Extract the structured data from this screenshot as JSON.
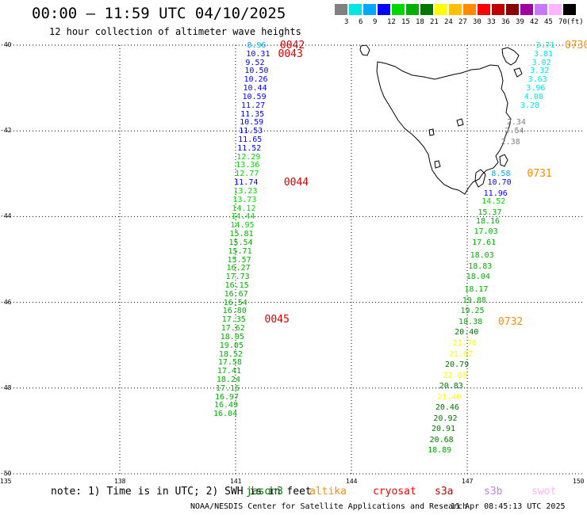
{
  "header": {
    "title": "00:00 – 11:59 UTC 04/10/2025",
    "subtitle": "12 hour collection of altimeter wave heights"
  },
  "legend": {
    "unit": "(ft)",
    "items": [
      {
        "label": "3",
        "color": "#808080"
      },
      {
        "label": "6",
        "color": "#00e5e5"
      },
      {
        "label": "9",
        "color": "#00a8ff"
      },
      {
        "label": "12",
        "color": "#0000ff"
      },
      {
        "label": "15",
        "color": "#00d800"
      },
      {
        "label": "18",
        "color": "#00b000"
      },
      {
        "label": "21",
        "color": "#007800"
      },
      {
        "label": "24",
        "color": "#ffff00"
      },
      {
        "label": "27",
        "color": "#ffc000"
      },
      {
        "label": "30",
        "color": "#ff8c00"
      },
      {
        "label": "33",
        "color": "#ff0000"
      },
      {
        "label": "36",
        "color": "#c00000"
      },
      {
        "label": "39",
        "color": "#880000"
      },
      {
        "label": "42",
        "color": "#a000a0"
      },
      {
        "label": "45",
        "color": "#c878ff"
      },
      {
        "label": "70",
        "color": "#ffb4ff"
      },
      {
        "label": "",
        "color": "#000000"
      }
    ]
  },
  "axes": {
    "lon": {
      "min": 135,
      "max": 150,
      "ticks": [
        "135",
        "138",
        "141",
        "144",
        "147",
        "150"
      ]
    },
    "lat": {
      "min": -50,
      "max": -40,
      "ticks": [
        "-40",
        "-42",
        "-44",
        "-46",
        "-48",
        "-50"
      ]
    }
  },
  "tracks": [
    {
      "id": "west",
      "points": [
        {
          "v": "8.96",
          "lat": -40.0,
          "lon": 141.87,
          "color": "#00a8ff"
        },
        {
          "v": "10.31",
          "lat": -40.2,
          "lon": 141.85,
          "color": "#0000ff"
        },
        {
          "v": "9.52",
          "lat": -40.4,
          "lon": 141.83,
          "color": "#0000ff"
        },
        {
          "v": "10.50",
          "lat": -40.6,
          "lon": 141.81,
          "color": "#0000ff"
        },
        {
          "v": "10.26",
          "lat": -40.8,
          "lon": 141.79,
          "color": "#0000ff"
        },
        {
          "v": "10.44",
          "lat": -41.0,
          "lon": 141.77,
          "color": "#0000ff"
        },
        {
          "v": "10.59",
          "lat": -41.2,
          "lon": 141.75,
          "color": "#0000ff"
        },
        {
          "v": "11.27",
          "lat": -41.4,
          "lon": 141.72,
          "color": "#0000ff"
        },
        {
          "v": "11.35",
          "lat": -41.6,
          "lon": 141.7,
          "color": "#0000ff"
        },
        {
          "v": "10.59",
          "lat": -41.8,
          "lon": 141.68,
          "color": "#0000ff"
        },
        {
          "v": "11.53",
          "lat": -42.0,
          "lon": 141.66,
          "color": "#0000ff"
        },
        {
          "v": "11.65",
          "lat": -42.2,
          "lon": 141.64,
          "color": "#0000ff"
        },
        {
          "v": "11.52",
          "lat": -42.4,
          "lon": 141.62,
          "color": "#0000ff"
        },
        {
          "v": "12.29",
          "lat": -42.6,
          "lon": 141.6,
          "color": "#00d800"
        },
        {
          "v": "13.36",
          "lat": -42.8,
          "lon": 141.58,
          "color": "#00d800"
        },
        {
          "v": "12.77",
          "lat": -43.0,
          "lon": 141.56,
          "color": "#00d800"
        },
        {
          "v": "11.74",
          "lat": -43.2,
          "lon": 141.54,
          "color": "#0000ff"
        },
        {
          "v": "13.23",
          "lat": -43.4,
          "lon": 141.52,
          "color": "#00d800"
        },
        {
          "v": "13.73",
          "lat": -43.6,
          "lon": 141.5,
          "color": "#00d800"
        },
        {
          "v": "14.12",
          "lat": -43.8,
          "lon": 141.48,
          "color": "#00d800"
        },
        {
          "v": "14.44",
          "lat": -44.0,
          "lon": 141.46,
          "color": "#00d800"
        },
        {
          "v": "14.95",
          "lat": -44.2,
          "lon": 141.44,
          "color": "#00d800"
        },
        {
          "v": "15.81",
          "lat": -44.4,
          "lon": 141.42,
          "color": "#00b000"
        },
        {
          "v": "15.54",
          "lat": -44.6,
          "lon": 141.4,
          "color": "#00b000"
        },
        {
          "v": "15.71",
          "lat": -44.8,
          "lon": 141.38,
          "color": "#00b000"
        },
        {
          "v": "15.57",
          "lat": -45.0,
          "lon": 141.36,
          "color": "#00b000"
        },
        {
          "v": "16.27",
          "lat": -45.2,
          "lon": 141.34,
          "color": "#00b000"
        },
        {
          "v": "17.73",
          "lat": -45.4,
          "lon": 141.32,
          "color": "#00b000"
        },
        {
          "v": "16.15",
          "lat": -45.6,
          "lon": 141.3,
          "color": "#00b000"
        },
        {
          "v": "16.67",
          "lat": -45.8,
          "lon": 141.28,
          "color": "#00b000"
        },
        {
          "v": "16.54",
          "lat": -46.0,
          "lon": 141.26,
          "color": "#00b000"
        },
        {
          "v": "16.80",
          "lat": -46.2,
          "lon": 141.24,
          "color": "#00b000"
        },
        {
          "v": "17.35",
          "lat": -46.4,
          "lon": 141.22,
          "color": "#00b000"
        },
        {
          "v": "17.62",
          "lat": -46.6,
          "lon": 141.2,
          "color": "#00b000"
        },
        {
          "v": "18.05",
          "lat": -46.8,
          "lon": 141.18,
          "color": "#00b000"
        },
        {
          "v": "19.05",
          "lat": -47.0,
          "lon": 141.16,
          "color": "#00b000"
        },
        {
          "v": "18.52",
          "lat": -47.2,
          "lon": 141.14,
          "color": "#00b000"
        },
        {
          "v": "17.58",
          "lat": -47.4,
          "lon": 141.12,
          "color": "#00b000"
        },
        {
          "v": "17.41",
          "lat": -47.6,
          "lon": 141.1,
          "color": "#00b000"
        },
        {
          "v": "18.24",
          "lat": -47.8,
          "lon": 141.08,
          "color": "#00b000"
        },
        {
          "v": "17.16",
          "lat": -48.0,
          "lon": 141.06,
          "color": "#00b000"
        },
        {
          "v": "16.97",
          "lat": -48.2,
          "lon": 141.04,
          "color": "#00b000"
        },
        {
          "v": "16.49",
          "lat": -48.4,
          "lon": 141.02,
          "color": "#00b000"
        },
        {
          "v": "16.04",
          "lat": -48.6,
          "lon": 141.0,
          "color": "#00b000"
        }
      ]
    },
    {
      "id": "east-upper",
      "points": [
        {
          "v": "3.71",
          "lat": -40.0,
          "lon": 149.35,
          "color": "#00e5e5"
        },
        {
          "v": "3.81",
          "lat": -40.2,
          "lon": 149.3,
          "color": "#00e5e5"
        },
        {
          "v": "3.02",
          "lat": -40.4,
          "lon": 149.25,
          "color": "#00e5e5"
        },
        {
          "v": "3.32",
          "lat": -40.6,
          "lon": 149.2,
          "color": "#00e5e5"
        },
        {
          "v": "3.63",
          "lat": -40.8,
          "lon": 149.15,
          "color": "#00e5e5"
        },
        {
          "v": "3.96",
          "lat": -41.0,
          "lon": 149.1,
          "color": "#00e5e5"
        },
        {
          "v": "4.00",
          "lat": -41.2,
          "lon": 149.05,
          "color": "#00e5e5"
        },
        {
          "v": "3.28",
          "lat": -41.4,
          "lon": 148.95,
          "color": "#00e5e5"
        },
        {
          "v": "2.34",
          "lat": -41.8,
          "lon": 148.6,
          "color": "#808080"
        },
        {
          "v": "2.54",
          "lat": -42.0,
          "lon": 148.55,
          "color": "#808080"
        },
        {
          "v": "2.38",
          "lat": -42.25,
          "lon": 148.45,
          "color": "#808080"
        }
      ]
    },
    {
      "id": "east",
      "points": [
        {
          "v": "8.58",
          "lat": -43.0,
          "lon": 148.2,
          "color": "#00a8ff"
        },
        {
          "v": "10.70",
          "lat": -43.2,
          "lon": 148.1,
          "color": "#0000ff"
        },
        {
          "v": "11.96",
          "lat": -43.45,
          "lon": 148.0,
          "color": "#0000ff"
        },
        {
          "v": "14.52",
          "lat": -43.65,
          "lon": 147.95,
          "color": "#00d800"
        },
        {
          "v": "15.37",
          "lat": -43.9,
          "lon": 147.85,
          "color": "#00b000"
        },
        {
          "v": "18.16",
          "lat": -44.1,
          "lon": 147.8,
          "color": "#00b000"
        },
        {
          "v": "17.03",
          "lat": -44.35,
          "lon": 147.75,
          "color": "#00b000"
        },
        {
          "v": "17.61",
          "lat": -44.6,
          "lon": 147.7,
          "color": "#00b000"
        },
        {
          "v": "18.03",
          "lat": -44.9,
          "lon": 147.65,
          "color": "#00b000"
        },
        {
          "v": "18.83",
          "lat": -45.15,
          "lon": 147.6,
          "color": "#00b000"
        },
        {
          "v": "18.04",
          "lat": -45.4,
          "lon": 147.55,
          "color": "#00b000"
        },
        {
          "v": "18.17",
          "lat": -45.7,
          "lon": 147.5,
          "color": "#00b000"
        },
        {
          "v": "19.88",
          "lat": -45.95,
          "lon": 147.45,
          "color": "#00b000"
        },
        {
          "v": "19.25",
          "lat": -46.2,
          "lon": 147.4,
          "color": "#00b000"
        },
        {
          "v": "18.38",
          "lat": -46.45,
          "lon": 147.35,
          "color": "#00b000"
        },
        {
          "v": "20.40",
          "lat": -46.7,
          "lon": 147.25,
          "color": "#007800"
        },
        {
          "v": "21.76",
          "lat": -46.95,
          "lon": 147.2,
          "color": "#ffff00"
        },
        {
          "v": "21.67",
          "lat": -47.2,
          "lon": 147.1,
          "color": "#ffff00"
        },
        {
          "v": "20.79",
          "lat": -47.45,
          "lon": 147.0,
          "color": "#007800"
        },
        {
          "v": "22.08",
          "lat": -47.7,
          "lon": 146.95,
          "color": "#ffff00"
        },
        {
          "v": "20.83",
          "lat": -47.95,
          "lon": 146.85,
          "color": "#007800"
        },
        {
          "v": "21.40",
          "lat": -48.2,
          "lon": 146.8,
          "color": "#ffff00"
        },
        {
          "v": "20.46",
          "lat": -48.45,
          "lon": 146.75,
          "color": "#007800"
        },
        {
          "v": "20.92",
          "lat": -48.7,
          "lon": 146.7,
          "color": "#007800"
        },
        {
          "v": "20.91",
          "lat": -48.95,
          "lon": 146.65,
          "color": "#007800"
        },
        {
          "v": "20.68",
          "lat": -49.2,
          "lon": 146.6,
          "color": "#007800"
        },
        {
          "v": "18.89",
          "lat": -49.45,
          "lon": 146.55,
          "color": "#00b000"
        }
      ]
    }
  ],
  "pass_times": [
    {
      "label": "0042",
      "lat": -40.0,
      "lon": 142.15
    },
    {
      "label": "0043",
      "lat": -40.2,
      "lon": 142.1
    },
    {
      "label": "0044",
      "lat": -43.2,
      "lon": 142.25
    },
    {
      "label": "0045",
      "lat": -46.4,
      "lon": 141.75
    },
    {
      "label": "0730",
      "lat": -40.0,
      "lon": 149.9,
      "color": "#ff8c00"
    },
    {
      "label": "0731",
      "lat": -43.0,
      "lon": 148.55,
      "color": "#ff8c00"
    },
    {
      "label": "0732",
      "lat": -46.45,
      "lon": 147.8,
      "color": "#ff8c00"
    }
  ],
  "footer": {
    "note": "note: 1) Time is in UTC; 2) SWH is in feet",
    "satellites": [
      {
        "name": "jason3",
        "color": "#008000"
      },
      {
        "name": "altika",
        "color": "#ff8c00"
      },
      {
        "name": "cryosat",
        "color": "#ff0000"
      },
      {
        "name": "s3a",
        "color": "#c00000"
      },
      {
        "name": "s3b",
        "color": "#c878ff"
      },
      {
        "name": "swot",
        "color": "#ffb4ff"
      }
    ],
    "credit": "NOAA/NESDIS Center for Satellite Applications and Research",
    "timestamp": "11 Apr 08:45:13 UTC 2025"
  }
}
